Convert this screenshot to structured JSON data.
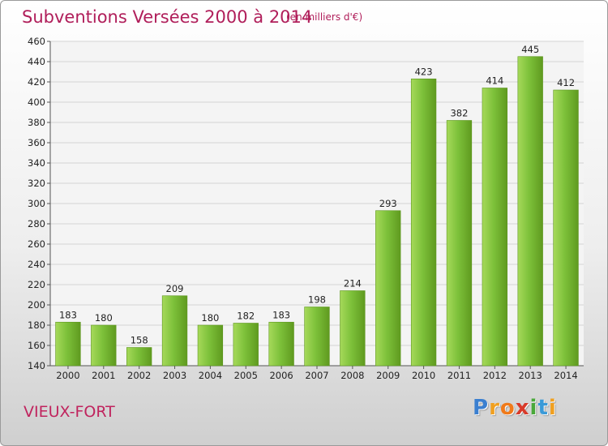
{
  "chart_data": {
    "type": "bar",
    "title": "Subventions Versées 2000 à 2014",
    "subtitle": "(en milliers d'€)",
    "categories": [
      "2000",
      "2001",
      "2002",
      "2003",
      "2004",
      "2005",
      "2006",
      "2007",
      "2008",
      "2009",
      "2010",
      "2011",
      "2012",
      "2013",
      "2014"
    ],
    "values": [
      183,
      180,
      158,
      209,
      180,
      182,
      183,
      198,
      214,
      293,
      423,
      382,
      414,
      445,
      412
    ],
    "ylim": [
      140,
      460
    ],
    "yticks": [
      140,
      160,
      180,
      200,
      220,
      240,
      260,
      280,
      300,
      320,
      340,
      360,
      380,
      400,
      420,
      440,
      460
    ],
    "grid": true,
    "bar_color": "#7dc13a",
    "bar_color_light": "#a6d95a",
    "bar_color_dark": "#5f9a1f"
  },
  "footer": {
    "place": "VIEUX-FORT",
    "logo_letters": [
      "P",
      "r",
      "o",
      "x",
      "i",
      "t",
      "i"
    ],
    "logo_colors": [
      "#3a7fd0",
      "#f0a020",
      "#f07a1a",
      "#d83a2a",
      "#4aa83a",
      "#3a9ad8",
      "#f0a020"
    ]
  }
}
